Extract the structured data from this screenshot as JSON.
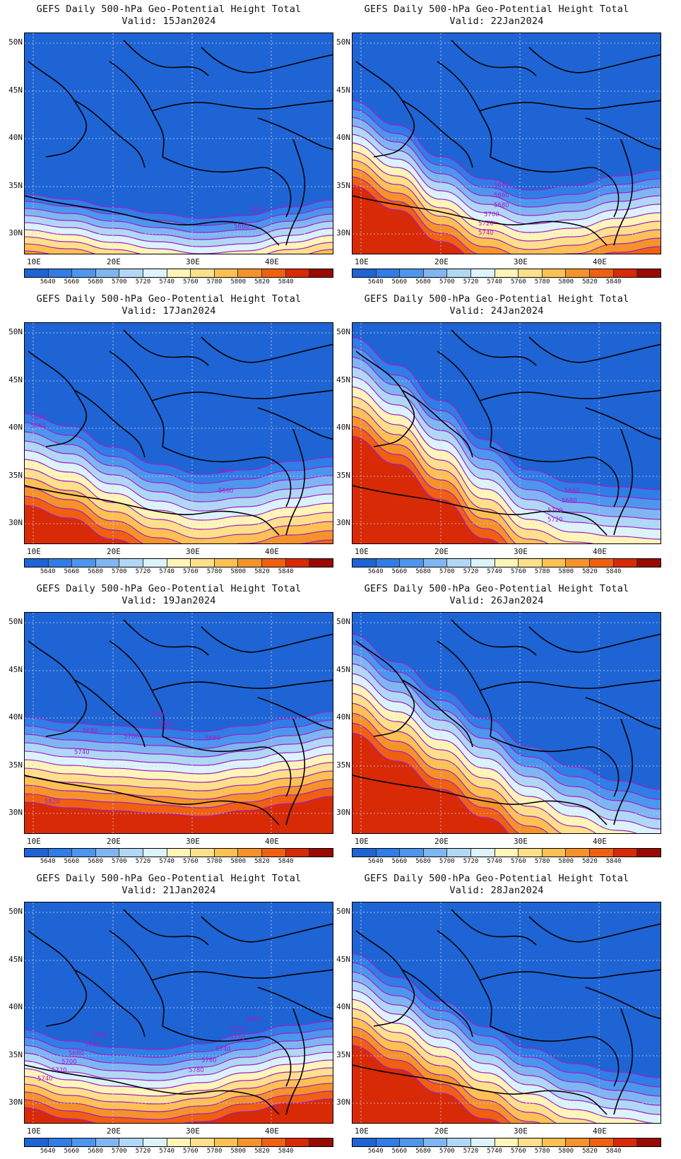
{
  "map_data": {
    "title": "GEFS Daily 500-hPa Geo-Potential Height Total",
    "lat_labels": [
      "50N",
      "45N",
      "40N",
      "35N",
      "30N"
    ],
    "lon_labels": [
      "10E",
      "20E",
      "30E",
      "40E"
    ],
    "colorbar": {
      "levels": [
        "5640",
        "5660",
        "5680",
        "5700",
        "5720",
        "5740",
        "5760",
        "5780",
        "5800",
        "5820",
        "5840"
      ],
      "colors": [
        "#1e64d4",
        "#2f7de6",
        "#4d96ee",
        "#7fb6f2",
        "#b0d8f6",
        "#dcf3fb",
        "#fff5b8",
        "#ffe08a",
        "#fcc152",
        "#f5932a",
        "#f06010",
        "#d82a06",
        "#9a0a02"
      ]
    },
    "panels": [
      {
        "valid": "Valid: 15Jan2024",
        "contour_labels": [
          {
            "text": "5640"
          },
          {
            "text": "5660"
          }
        ]
      },
      {
        "valid": "Valid: 22Jan2024",
        "contour_labels": [
          {
            "text": "5640"
          },
          {
            "text": "5660"
          },
          {
            "text": "5680"
          },
          {
            "text": "5700"
          },
          {
            "text": "5720"
          },
          {
            "text": "5740"
          }
        ]
      },
      {
        "valid": "Valid: 17Jan2024",
        "contour_labels": [
          {
            "text": "5640"
          },
          {
            "text": "5660"
          },
          {
            "text": "5640"
          },
          {
            "text": "5660"
          }
        ]
      },
      {
        "valid": "Valid: 24Jan2024",
        "contour_labels": [
          {
            "text": "5660"
          },
          {
            "text": "5680"
          },
          {
            "text": "5700"
          },
          {
            "text": "5720"
          }
        ]
      },
      {
        "valid": "Valid: 19Jan2024",
        "contour_labels": [
          {
            "text": "5660"
          },
          {
            "text": "5680"
          },
          {
            "text": "5680"
          },
          {
            "text": "5700"
          },
          {
            "text": "5680"
          },
          {
            "text": "5740"
          },
          {
            "text": "5820"
          }
        ]
      },
      {
        "valid": "Valid: 26Jan2024",
        "contour_labels": []
      },
      {
        "valid": "Valid: 21Jan2024",
        "contour_labels": [
          {
            "text": "5640"
          },
          {
            "text": "5660"
          },
          {
            "text": "5680"
          },
          {
            "text": "5700"
          },
          {
            "text": "5720"
          },
          {
            "text": "5740"
          },
          {
            "text": "5680"
          },
          {
            "text": "5700"
          },
          {
            "text": "5720"
          },
          {
            "text": "5740"
          },
          {
            "text": "5760"
          },
          {
            "text": "5780"
          }
        ]
      },
      {
        "valid": "Valid: 28Jan2024",
        "contour_labels": []
      }
    ]
  }
}
